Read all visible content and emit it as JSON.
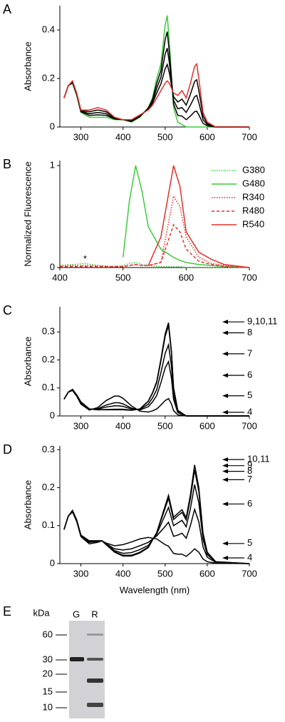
{
  "chart_data": [
    {
      "type": "line",
      "panel": "A",
      "ylabel": "Absorbance",
      "xlim": [
        250,
        700
      ],
      "ylim": [
        0,
        0.5
      ],
      "xticks": [
        300,
        400,
        500,
        600,
        700
      ],
      "yticks": [
        0,
        0.2,
        0.4
      ],
      "x": [
        260,
        270,
        280,
        290,
        300,
        320,
        340,
        360,
        380,
        400,
        420,
        440,
        460,
        470,
        480,
        490,
        500,
        505,
        510,
        520,
        530,
        540,
        550,
        560,
        570,
        575,
        580,
        590,
        600,
        620,
        650,
        700
      ],
      "series": [
        {
          "color": "#3ccc3c",
          "dash": "solid",
          "values": [
            0.12,
            0.17,
            0.18,
            0.13,
            0.06,
            0.04,
            0.04,
            0.04,
            0.03,
            0.03,
            0.02,
            0.04,
            0.08,
            0.12,
            0.2,
            0.26,
            0.42,
            0.46,
            0.35,
            0.08,
            0.02,
            0.01,
            0,
            0,
            0,
            0,
            0,
            0,
            0,
            0,
            0,
            0
          ]
        },
        {
          "color": "#000000",
          "dash": "solid",
          "values": [
            0.12,
            0.17,
            0.183,
            0.133,
            0.063,
            0.048,
            0.05,
            0.048,
            0.033,
            0.03,
            0.023,
            0.043,
            0.078,
            0.113,
            0.18,
            0.233,
            0.36,
            0.393,
            0.308,
            0.095,
            0.048,
            0.045,
            0.03,
            0.045,
            0.063,
            0.065,
            0.05,
            0.015,
            0.005,
            0,
            0,
            0
          ]
        },
        {
          "color": "#000000",
          "dash": "solid",
          "values": [
            0.12,
            0.17,
            0.185,
            0.135,
            0.065,
            0.055,
            0.06,
            0.055,
            0.035,
            0.03,
            0.025,
            0.045,
            0.075,
            0.105,
            0.16,
            0.205,
            0.3,
            0.325,
            0.265,
            0.11,
            0.075,
            0.08,
            0.06,
            0.09,
            0.125,
            0.13,
            0.1,
            0.03,
            0.01,
            0,
            0,
            0
          ]
        },
        {
          "color": "#000000",
          "dash": "solid",
          "values": [
            0.12,
            0.17,
            0.188,
            0.138,
            0.068,
            0.063,
            0.07,
            0.063,
            0.038,
            0.03,
            0.028,
            0.048,
            0.073,
            0.098,
            0.14,
            0.178,
            0.24,
            0.258,
            0.223,
            0.125,
            0.103,
            0.115,
            0.09,
            0.135,
            0.188,
            0.195,
            0.15,
            0.045,
            0.015,
            0,
            0,
            0
          ]
        },
        {
          "color": "#e0302a",
          "dash": "solid",
          "values": [
            0.12,
            0.17,
            0.19,
            0.14,
            0.07,
            0.07,
            0.08,
            0.07,
            0.04,
            0.03,
            0.03,
            0.05,
            0.07,
            0.09,
            0.12,
            0.15,
            0.18,
            0.19,
            0.18,
            0.14,
            0.13,
            0.15,
            0.12,
            0.18,
            0.25,
            0.26,
            0.2,
            0.06,
            0.02,
            0,
            0,
            0
          ]
        }
      ]
    },
    {
      "type": "line",
      "panel": "B",
      "ylabel": "Normalized Fluorescence",
      "xlim": [
        400,
        700
      ],
      "ylim": [
        0,
        1.05
      ],
      "xticks": [
        400,
        500,
        600,
        700
      ],
      "yticks": [
        0,
        1
      ],
      "legend": "upper right",
      "annotations": [
        {
          "text": "*",
          "x": 440,
          "y": 0.08
        }
      ],
      "x": [
        400,
        420,
        440,
        460,
        480,
        500,
        510,
        520,
        530,
        540,
        560,
        580,
        590,
        600,
        620,
        640,
        660,
        700
      ],
      "series": [
        {
          "name": "G380",
          "color": "#3ccc3c",
          "dash": "dotted",
          "values": [
            0.02,
            0.03,
            0.04,
            0.02,
            0.01,
            0.02,
            0.04,
            0.05,
            0.03,
            0.02,
            0.01,
            0.01,
            0.01,
            0,
            0,
            0,
            0,
            0
          ]
        },
        {
          "name": "G480",
          "color": "#3ccc3c",
          "dash": "solid",
          "values": [
            null,
            null,
            null,
            null,
            null,
            0.1,
            0.65,
            1.0,
            0.75,
            0.4,
            0.18,
            0.1,
            0.07,
            0.05,
            0.03,
            0.02,
            0.01,
            0
          ]
        },
        {
          "name": "R340",
          "color": "#e0302a",
          "dash": "dotted",
          "values": [
            0.02,
            0.02,
            0.02,
            0.02,
            0.01,
            0.01,
            0.02,
            0.03,
            0.02,
            0.02,
            0.05,
            0.7,
            0.6,
            0.3,
            0.1,
            0.04,
            0.02,
            0
          ]
        },
        {
          "name": "R480",
          "color": "#e0302a",
          "dash": "dashed",
          "values": [
            0.01,
            0.01,
            0.01,
            0.01,
            0.01,
            0.01,
            0.02,
            0.03,
            0.02,
            0.02,
            0.05,
            0.42,
            0.35,
            0.18,
            0.06,
            0.03,
            0.01,
            0
          ]
        },
        {
          "name": "R540",
          "color": "#e0302a",
          "dash": "solid",
          "values": [
            null,
            null,
            null,
            null,
            null,
            null,
            null,
            null,
            null,
            0.02,
            0.3,
            1.0,
            0.8,
            0.35,
            0.15,
            0.08,
            0.03,
            0
          ]
        }
      ]
    },
    {
      "type": "line",
      "panel": "C",
      "ylabel": "Absorbance",
      "xlim": [
        250,
        700
      ],
      "ylim": [
        0,
        0.39
      ],
      "xticks": [
        300,
        400,
        500,
        600,
        700
      ],
      "yticks": [
        0,
        0.1,
        0.2,
        0.3
      ],
      "arrows": [
        {
          "label": "9,10,11",
          "value": 0.336
        },
        {
          "label": "8",
          "value": 0.297
        },
        {
          "label": "7",
          "value": 0.222
        },
        {
          "label": "6",
          "value": 0.145
        },
        {
          "label": "5",
          "value": 0.072
        },
        {
          "label": "4",
          "value": 0.013
        }
      ],
      "x": [
        260,
        270,
        280,
        290,
        300,
        320,
        340,
        360,
        380,
        390,
        400,
        420,
        440,
        460,
        470,
        480,
        490,
        500,
        508,
        515,
        520,
        530,
        550,
        600,
        700
      ],
      "series": [
        {
          "color": "#000000",
          "dash": "solid",
          "values": [
            0.06,
            0.085,
            0.091,
            0.071,
            0.042,
            0.021,
            0.03,
            0.055,
            0.071,
            0.071,
            0.063,
            0.036,
            0.017,
            0.014,
            0.018,
            0.025,
            0.039,
            0.055,
            0.062,
            0.043,
            0.019,
            0.004,
            0,
            0,
            0
          ]
        },
        {
          "color": "#000000",
          "dash": "solid",
          "values": [
            0.06,
            0.085,
            0.093,
            0.073,
            0.046,
            0.023,
            0.026,
            0.039,
            0.047,
            0.047,
            0.043,
            0.028,
            0.021,
            0.033,
            0.05,
            0.073,
            0.119,
            0.171,
            0.194,
            0.135,
            0.059,
            0.012,
            0,
            0,
            0
          ]
        },
        {
          "color": "#000000",
          "dash": "solid",
          "values": [
            0.06,
            0.085,
            0.094,
            0.074,
            0.048,
            0.024,
            0.024,
            0.032,
            0.036,
            0.036,
            0.034,
            0.025,
            0.023,
            0.042,
            0.064,
            0.094,
            0.155,
            0.223,
            0.254,
            0.177,
            0.077,
            0.015,
            0,
            0,
            0
          ]
        },
        {
          "color": "#000000",
          "dash": "solid",
          "values": [
            0.06,
            0.085,
            0.095,
            0.075,
            0.05,
            0.025,
            0.022,
            0.023,
            0.024,
            0.024,
            0.024,
            0.021,
            0.025,
            0.052,
            0.081,
            0.119,
            0.197,
            0.284,
            0.323,
            0.225,
            0.098,
            0.019,
            0,
            0,
            0
          ]
        },
        {
          "color": "#000000",
          "dash": "solid",
          "values": [
            0.06,
            0.085,
            0.095,
            0.075,
            0.05,
            0.025,
            0.022,
            0.022,
            0.022,
            0.022,
            0.022,
            0.02,
            0.025,
            0.053,
            0.083,
            0.123,
            0.203,
            0.293,
            0.333,
            0.232,
            0.101,
            0.02,
            0,
            0,
            0
          ]
        }
      ]
    },
    {
      "type": "line",
      "panel": "D",
      "ylabel": "Absorbance",
      "xlabel": "Wavelength (nm)",
      "xlim": [
        250,
        700
      ],
      "ylim": [
        0,
        0.31
      ],
      "xticks": [
        300,
        400,
        500,
        600,
        700
      ],
      "yticks": [
        0,
        0.1,
        0.2,
        0.3
      ],
      "arrows": [
        {
          "label": "10,11",
          "value": 0.274
        },
        {
          "label": "9",
          "value": 0.258
        },
        {
          "label": "8",
          "value": 0.243
        },
        {
          "label": "7",
          "value": 0.221
        },
        {
          "label": "6",
          "value": 0.157
        },
        {
          "label": "5",
          "value": 0.053
        },
        {
          "label": "4",
          "value": 0.015
        }
      ],
      "x": [
        260,
        270,
        280,
        290,
        300,
        320,
        340,
        350,
        360,
        380,
        400,
        420,
        440,
        460,
        480,
        500,
        508,
        520,
        530,
        540,
        550,
        560,
        570,
        580,
        590,
        600,
        620,
        700
      ],
      "series": [
        {
          "color": "#000000",
          "dash": "solid",
          "values": [
            0.09,
            0.125,
            0.136,
            0.111,
            0.071,
            0.052,
            0.056,
            0.06,
            0.054,
            0.047,
            0.05,
            0.057,
            0.065,
            0.069,
            0.065,
            0.05,
            0.046,
            0.027,
            0.025,
            0.025,
            0.019,
            0.028,
            0.039,
            0.03,
            0.012,
            0.005,
            0.001,
            0
          ]
        },
        {
          "color": "#000000",
          "dash": "solid",
          "values": [
            0.09,
            0.125,
            0.138,
            0.113,
            0.073,
            0.056,
            0.058,
            0.06,
            0.052,
            0.039,
            0.036,
            0.039,
            0.047,
            0.056,
            0.073,
            0.098,
            0.109,
            0.072,
            0.075,
            0.08,
            0.067,
            0.1,
            0.143,
            0.11,
            0.044,
            0.017,
            0.003,
            0
          ]
        },
        {
          "color": "#000000",
          "dash": "solid",
          "values": [
            0.09,
            0.125,
            0.139,
            0.114,
            0.074,
            0.058,
            0.059,
            0.06,
            0.051,
            0.034,
            0.027,
            0.029,
            0.037,
            0.048,
            0.078,
            0.128,
            0.148,
            0.1,
            0.107,
            0.114,
            0.097,
            0.145,
            0.208,
            0.16,
            0.064,
            0.024,
            0.004,
            0
          ]
        },
        {
          "color": "#000000",
          "dash": "solid",
          "values": [
            0.09,
            0.125,
            0.14,
            0.115,
            0.075,
            0.06,
            0.06,
            0.06,
            0.05,
            0.031,
            0.022,
            0.022,
            0.03,
            0.044,
            0.081,
            0.146,
            0.172,
            0.116,
            0.126,
            0.135,
            0.115,
            0.172,
            0.247,
            0.19,
            0.076,
            0.029,
            0.005,
            0
          ]
        },
        {
          "color": "#000000",
          "dash": "solid",
          "values": [
            0.09,
            0.125,
            0.14,
            0.115,
            0.075,
            0.06,
            0.06,
            0.06,
            0.05,
            0.03,
            0.02,
            0.02,
            0.028,
            0.042,
            0.082,
            0.152,
            0.18,
            0.122,
            0.132,
            0.142,
            0.121,
            0.181,
            0.26,
            0.2,
            0.08,
            0.03,
            0.005,
            0
          ]
        }
      ]
    }
  ],
  "gel": {
    "panel": "E",
    "unit": "kDa",
    "lanes": [
      "G",
      "R"
    ],
    "markers": [
      60,
      30,
      20,
      15,
      10
    ]
  }
}
